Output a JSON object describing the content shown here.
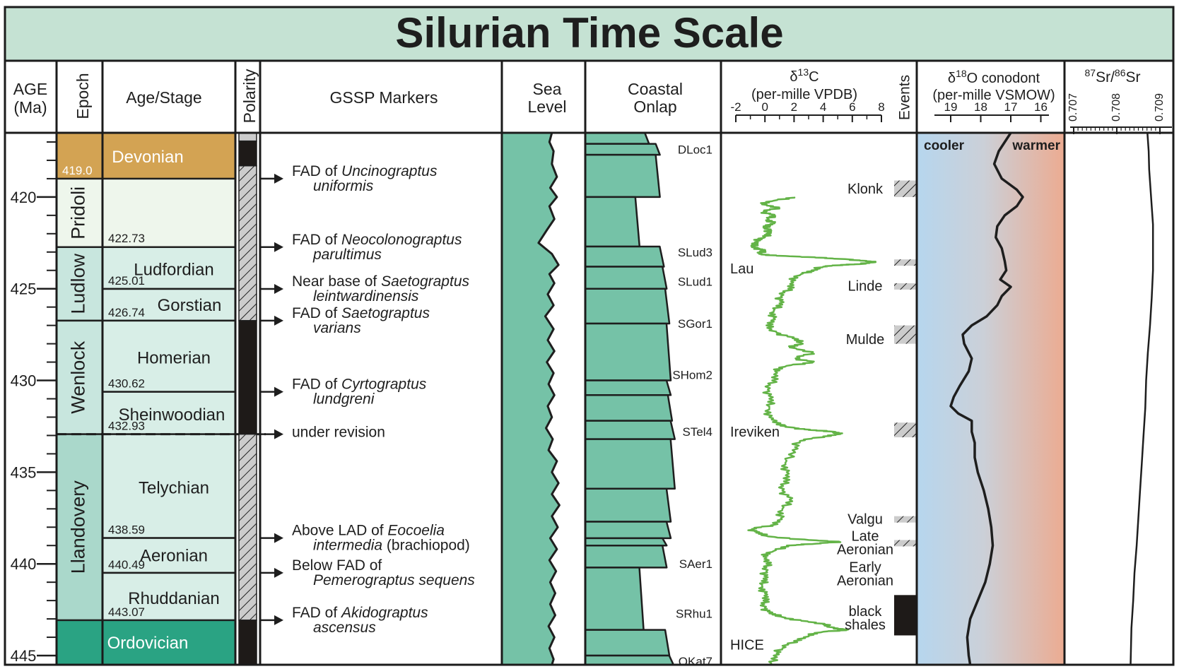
{
  "title": "Silurian Time Scale",
  "headers": {
    "age": [
      "AGE",
      "(Ma)"
    ],
    "epoch": "Epoch",
    "stage": "Age/Stage",
    "polarity": "Polarity",
    "gssp": "GSSP Markers",
    "sea_level": [
      "Sea",
      "Level"
    ],
    "onlap": [
      "Coastal",
      "Onlap"
    ],
    "d13c": [
      "δ13C",
      "(per-mille VPDB)"
    ],
    "events": "Events",
    "d18o": [
      "δ18O conodont",
      "(per-mille VSMOW)"
    ],
    "sr": "87Sr/86Sr"
  },
  "age_axis": {
    "min": 416.5,
    "max": 445.5,
    "labels": [
      420,
      425,
      430,
      435,
      440,
      445
    ]
  },
  "periods": [
    {
      "name": "Devonian",
      "base_label": "419.0",
      "color": "#d3a353"
    },
    {
      "name": "Ordovician",
      "color": "#2aa383"
    }
  ],
  "epochs": [
    {
      "name": "Pridoli",
      "top": 419.0,
      "base": 422.73,
      "color": "#eef6ec"
    },
    {
      "name": "Ludlow",
      "top": 422.73,
      "base": 426.74,
      "color": "#c8e6de"
    },
    {
      "name": "Wenlock",
      "top": 426.74,
      "base": 432.93,
      "color": "#c8e6de"
    },
    {
      "name": "Llandovery",
      "top": 432.93,
      "base": 443.07,
      "color": "#aad8cb"
    }
  ],
  "stages": [
    {
      "name": "Ludfordian",
      "top": 422.73,
      "base": 425.01,
      "label": "425.01"
    },
    {
      "name": "Gorstian",
      "top": 425.01,
      "base": 426.74,
      "label": "426.74"
    },
    {
      "name": "Homerian",
      "top": 426.74,
      "base": 430.62,
      "label": "430.62"
    },
    {
      "name": "Sheinwoodian",
      "top": 430.62,
      "base": 432.93,
      "label": "432.93"
    },
    {
      "name": "Telychian",
      "top": 432.93,
      "base": 438.59,
      "label": "438.59"
    },
    {
      "name": "Aeronian",
      "top": 438.59,
      "base": 440.49,
      "label": "440.49"
    },
    {
      "name": "Rhuddanian",
      "top": 440.49,
      "base": 443.07,
      "label": "443.07"
    }
  ],
  "pridoli_base_label": "422.73",
  "polarity": [
    {
      "top": 416.5,
      "base": 416.95,
      "type": "gray"
    },
    {
      "top": 416.95,
      "base": 418.3,
      "type": "black"
    },
    {
      "top": 418.3,
      "base": 426.74,
      "type": "hatch"
    },
    {
      "top": 426.74,
      "base": 432.93,
      "type": "black"
    },
    {
      "top": 432.93,
      "base": 443.07,
      "type": "hatch"
    },
    {
      "top": 443.07,
      "base": 445.5,
      "type": "black"
    }
  ],
  "gssp": [
    {
      "age": 419.0,
      "lines": [
        [
          {
            "t": "FAD of "
          },
          {
            "t": "Uncinograptus",
            "i": true
          }
        ],
        [
          {
            "t": "uniformis",
            "i": true
          }
        ]
      ]
    },
    {
      "age": 422.73,
      "lines": [
        [
          {
            "t": "FAD of "
          },
          {
            "t": "Neocolonograptus",
            "i": true
          }
        ],
        [
          {
            "t": "parultimus",
            "i": true
          }
        ]
      ]
    },
    {
      "age": 425.01,
      "lines": [
        [
          {
            "t": "Near base of "
          },
          {
            "t": "Saetograptus",
            "i": true
          }
        ],
        [
          {
            "t": "leintwardinensis",
            "i": true
          }
        ]
      ]
    },
    {
      "age": 426.74,
      "lines": [
        [
          {
            "t": "FAD of "
          },
          {
            "t": "Saetograptus",
            "i": true
          }
        ],
        [
          {
            "t": "varians",
            "i": true
          }
        ]
      ]
    },
    {
      "age": 430.62,
      "lines": [
        [
          {
            "t": "FAD of "
          },
          {
            "t": "Cyrtograptus",
            "i": true
          }
        ],
        [
          {
            "t": "lundgreni",
            "i": true
          }
        ]
      ]
    },
    {
      "age": 432.93,
      "lines": [
        [
          {
            "t": "under revision"
          }
        ]
      ]
    },
    {
      "age": 438.59,
      "lines": [
        [
          {
            "t": "Above LAD of "
          },
          {
            "t": "Eocoelia",
            "i": true
          }
        ],
        [
          {
            "t": "intermedia",
            "i": true
          },
          {
            "t": " (brachiopod)"
          }
        ]
      ]
    },
    {
      "age": 440.49,
      "lines": [
        [
          {
            "t": "Below FAD of"
          }
        ],
        [
          {
            "t": "Pemerograptus sequens",
            "i": true
          }
        ]
      ]
    },
    {
      "age": 443.07,
      "lines": [
        [
          {
            "t": "FAD of "
          },
          {
            "t": "Akidograptus",
            "i": true
          }
        ],
        [
          {
            "t": "ascensus",
            "i": true
          }
        ]
      ]
    }
  ],
  "sea_level_curve": [
    [
      416.5,
      0.6
    ],
    [
      417.0,
      0.57
    ],
    [
      417.5,
      0.62
    ],
    [
      418.2,
      0.6
    ],
    [
      418.9,
      0.66
    ],
    [
      419.5,
      0.58
    ],
    [
      420.0,
      0.66
    ],
    [
      420.5,
      0.57
    ],
    [
      421.2,
      0.63
    ],
    [
      421.8,
      0.54
    ],
    [
      422.5,
      0.44
    ],
    [
      423.1,
      0.6
    ],
    [
      423.7,
      0.68
    ],
    [
      424.2,
      0.57
    ],
    [
      424.7,
      0.63
    ],
    [
      425.3,
      0.55
    ],
    [
      425.9,
      0.62
    ],
    [
      426.5,
      0.52
    ],
    [
      427.2,
      0.62
    ],
    [
      427.8,
      0.55
    ],
    [
      428.4,
      0.63
    ],
    [
      429.0,
      0.54
    ],
    [
      429.6,
      0.62
    ],
    [
      430.2,
      0.56
    ],
    [
      430.8,
      0.63
    ],
    [
      431.4,
      0.55
    ],
    [
      432.0,
      0.6
    ],
    [
      432.6,
      0.53
    ],
    [
      433.2,
      0.61
    ],
    [
      433.8,
      0.56
    ],
    [
      434.4,
      0.66
    ],
    [
      435.0,
      0.6
    ],
    [
      435.6,
      0.68
    ],
    [
      436.2,
      0.6
    ],
    [
      436.8,
      0.69
    ],
    [
      437.4,
      0.6
    ],
    [
      438.0,
      0.67
    ],
    [
      438.6,
      0.58
    ],
    [
      439.2,
      0.66
    ],
    [
      439.8,
      0.57
    ],
    [
      440.4,
      0.65
    ],
    [
      441.0,
      0.58
    ],
    [
      441.6,
      0.64
    ],
    [
      442.2,
      0.58
    ],
    [
      442.8,
      0.64
    ],
    [
      443.4,
      0.56
    ],
    [
      444.0,
      0.63
    ],
    [
      444.6,
      0.57
    ],
    [
      445.2,
      0.62
    ],
    [
      445.5,
      0.6
    ]
  ],
  "onlap_sequences": [
    {
      "top": 416.5,
      "base": 417.1,
      "right": 0.47
    },
    {
      "top": 417.1,
      "base": 417.7,
      "right": 0.55
    },
    {
      "top": 417.7,
      "base": 420.0,
      "right": 0.55
    },
    {
      "top": 420.0,
      "base": 422.7,
      "right": 0.4
    },
    {
      "top": 422.7,
      "base": 423.8,
      "right": 0.58
    },
    {
      "top": 423.8,
      "base": 425.0,
      "right": 0.6
    },
    {
      "top": 425.0,
      "base": 426.9,
      "right": 0.62
    },
    {
      "top": 426.9,
      "base": 430.0,
      "right": 0.63
    },
    {
      "top": 430.0,
      "base": 430.8,
      "right": 0.63
    },
    {
      "top": 430.8,
      "base": 432.2,
      "right": 0.64
    },
    {
      "top": 432.2,
      "base": 433.2,
      "right": 0.66
    },
    {
      "top": 433.2,
      "base": 435.9,
      "right": 0.66
    },
    {
      "top": 435.9,
      "base": 437.7,
      "right": 0.63
    },
    {
      "top": 437.7,
      "base": 438.6,
      "right": 0.63
    },
    {
      "top": 438.6,
      "base": 439.0,
      "right": 0.6
    },
    {
      "top": 439.0,
      "base": 440.2,
      "right": 0.6
    },
    {
      "top": 440.2,
      "base": 443.6,
      "right": 0.43
    },
    {
      "top": 443.6,
      "base": 445.0,
      "right": 0.62
    },
    {
      "top": 445.0,
      "base": 445.5,
      "right": 0.65
    }
  ],
  "onlap_labels": [
    {
      "text": "DLoc1",
      "age": 417.4
    },
    {
      "text": "SLud3",
      "age": 423.0
    },
    {
      "text": "SLud1",
      "age": 424.6
    },
    {
      "text": "SGor1",
      "age": 426.9
    },
    {
      "text": "SHom2",
      "age": 429.7
    },
    {
      "text": "STel4",
      "age": 432.8
    },
    {
      "text": "SAer1",
      "age": 440.0
    },
    {
      "text": "SRhu1",
      "age": 442.7
    },
    {
      "text": "OKat7",
      "age": 445.3
    }
  ],
  "d13c": {
    "ticks": [
      -2,
      0,
      2,
      4,
      6,
      8
    ],
    "curve": [
      [
        420.0,
        2.0
      ],
      [
        420.2,
        0.6
      ],
      [
        420.4,
        -0.2
      ],
      [
        420.6,
        0.8
      ],
      [
        420.8,
        -0.1
      ],
      [
        421.0,
        0.5
      ],
      [
        421.2,
        0.2
      ],
      [
        421.4,
        0.6
      ],
      [
        421.6,
        -0.1
      ],
      [
        421.8,
        0.4
      ],
      [
        422.0,
        0.1
      ],
      [
        422.2,
        0.0
      ],
      [
        422.4,
        -0.6
      ],
      [
        422.6,
        -0.9
      ],
      [
        422.8,
        -0.5
      ],
      [
        422.9,
        -0.2
      ],
      [
        423.1,
        -0.4
      ],
      [
        423.2,
        0.8
      ],
      [
        423.3,
        3.5
      ],
      [
        423.4,
        5.8
      ],
      [
        423.5,
        6.9
      ],
      [
        423.55,
        7.6
      ],
      [
        423.65,
        6.6
      ],
      [
        423.7,
        5.2
      ],
      [
        423.8,
        4.0
      ],
      [
        424.0,
        3.2
      ],
      [
        424.2,
        2.5
      ],
      [
        424.6,
        1.8
      ],
      [
        425.0,
        1.6
      ],
      [
        425.4,
        1.1
      ],
      [
        425.8,
        1.0
      ],
      [
        426.2,
        0.6
      ],
      [
        426.6,
        0.6
      ],
      [
        427.0,
        0.1
      ],
      [
        427.4,
        0.8
      ],
      [
        427.7,
        1.9
      ],
      [
        428.0,
        2.6
      ],
      [
        428.2,
        1.7
      ],
      [
        428.5,
        3.2
      ],
      [
        428.8,
        2.1
      ],
      [
        429.0,
        3.3
      ],
      [
        429.2,
        1.5
      ],
      [
        429.5,
        0.7
      ],
      [
        430.0,
        0.5
      ],
      [
        430.5,
        0.2
      ],
      [
        431.0,
        0.3
      ],
      [
        431.5,
        0.3
      ],
      [
        432.0,
        0.3
      ],
      [
        432.4,
        0.8
      ],
      [
        432.6,
        2.1
      ],
      [
        432.7,
        3.0
      ],
      [
        432.8,
        4.8
      ],
      [
        432.9,
        5.2
      ],
      [
        433.05,
        4.0
      ],
      [
        433.3,
        2.4
      ],
      [
        433.8,
        1.9
      ],
      [
        434.5,
        1.4
      ],
      [
        435.0,
        1.5
      ],
      [
        435.5,
        1.3
      ],
      [
        436.0,
        1.2
      ],
      [
        436.5,
        1.7
      ],
      [
        437.0,
        1.2
      ],
      [
        437.5,
        1.1
      ],
      [
        437.9,
        0.4
      ],
      [
        438.1,
        -0.9
      ],
      [
        438.3,
        -0.6
      ],
      [
        438.5,
        0.2
      ],
      [
        438.7,
        3.0
      ],
      [
        438.8,
        5.1
      ],
      [
        438.9,
        3.5
      ],
      [
        439.0,
        1.5
      ],
      [
        439.3,
        0.6
      ],
      [
        439.6,
        -0.1
      ],
      [
        440.0,
        0.1
      ],
      [
        440.4,
        0.1
      ],
      [
        440.8,
        -0.1
      ],
      [
        441.2,
        -0.2
      ],
      [
        441.6,
        0.0
      ],
      [
        442.0,
        -0.1
      ],
      [
        442.4,
        0.0
      ],
      [
        442.7,
        0.3
      ],
      [
        442.9,
        1.2
      ],
      [
        443.1,
        2.5
      ],
      [
        443.3,
        4.0
      ],
      [
        443.5,
        4.8
      ],
      [
        443.6,
        5.6
      ],
      [
        443.7,
        4.0
      ],
      [
        443.9,
        3.0
      ],
      [
        444.2,
        2.0
      ],
      [
        444.6,
        1.2
      ],
      [
        445.0,
        0.6
      ],
      [
        445.5,
        0.4
      ]
    ]
  },
  "d13c_labels": [
    {
      "text": "Lau",
      "age": 423.9
    },
    {
      "text": "Ireviken",
      "age": 432.8
    },
    {
      "text": "HICE",
      "age": 444.4
    }
  ],
  "events": [
    {
      "name": [
        "Klonk"
      ],
      "top": 419.1,
      "base": 420.0,
      "type": "hatch",
      "label_age": 419.5
    },
    {
      "name": [
        "Linde"
      ],
      "top": 424.7,
      "base": 424.9,
      "type": "hatch",
      "label_age": 424.8
    },
    {
      "name": [
        "Mulde"
      ],
      "top": 427.0,
      "base": 428.0,
      "type": "hatch",
      "label_age": 427.7
    },
    {
      "name": [
        "Valgu"
      ],
      "top": 437.4,
      "base": 437.6,
      "type": "hatch",
      "label_age": 437.5
    },
    {
      "name": [
        "Late",
        "Aeronian"
      ],
      "top": 438.7,
      "base": 438.85,
      "type": "hatch",
      "label_age": 438.8
    },
    {
      "name": [
        "Early",
        "Aeronian"
      ],
      "top": 440.5,
      "base": 440.5,
      "type": "none",
      "label_age": 440.5
    },
    {
      "name": [
        "black",
        "shales"
      ],
      "top": 441.7,
      "base": 443.9,
      "type": "black",
      "label_age": 442.9
    },
    {
      "name": [],
      "top": 423.4,
      "base": 423.6,
      "type": "hatch",
      "label_age": 423.5
    },
    {
      "name": [],
      "top": 432.3,
      "base": 433.1,
      "type": "hatch",
      "label_age": 432.7
    }
  ],
  "d18o": {
    "ticks": [
      19,
      18,
      17,
      16
    ],
    "cool_label": "cooler",
    "warm_label": "warmer",
    "cool_color": "#b6d6ee",
    "warm_color": "#ecab91",
    "curve": [
      [
        416.5,
        17.0
      ],
      [
        417.5,
        17.4
      ],
      [
        418.2,
        17.55
      ],
      [
        419.0,
        17.3
      ],
      [
        419.6,
        16.8
      ],
      [
        420.0,
        16.6
      ],
      [
        420.5,
        16.8
      ],
      [
        421.0,
        17.2
      ],
      [
        421.6,
        17.45
      ],
      [
        422.2,
        17.5
      ],
      [
        422.8,
        17.3
      ],
      [
        423.5,
        17.2
      ],
      [
        424.0,
        17.15
      ],
      [
        424.5,
        17.35
      ],
      [
        424.9,
        17.0
      ],
      [
        425.4,
        17.3
      ],
      [
        425.9,
        17.45
      ],
      [
        426.5,
        17.8
      ],
      [
        427.0,
        18.3
      ],
      [
        427.5,
        18.6
      ],
      [
        428.0,
        18.55
      ],
      [
        428.8,
        18.3
      ],
      [
        429.5,
        18.4
      ],
      [
        430.3,
        18.7
      ],
      [
        430.9,
        18.9
      ],
      [
        431.4,
        19.0
      ],
      [
        431.8,
        18.75
      ],
      [
        432.2,
        18.3
      ],
      [
        432.8,
        18.3
      ],
      [
        433.4,
        18.2
      ],
      [
        434.2,
        18.2
      ],
      [
        435.0,
        18.1
      ],
      [
        436.0,
        17.9
      ],
      [
        437.0,
        17.75
      ],
      [
        438.0,
        17.65
      ],
      [
        439.0,
        17.6
      ],
      [
        440.0,
        17.7
      ],
      [
        441.0,
        17.85
      ],
      [
        442.0,
        18.1
      ],
      [
        443.0,
        18.35
      ],
      [
        444.0,
        18.45
      ],
      [
        445.0,
        18.4
      ],
      [
        445.5,
        18.35
      ]
    ]
  },
  "sr": {
    "ticks": [
      "0.707",
      "0.708",
      "0.709"
    ],
    "curve": [
      [
        416.5,
        0.70871
      ],
      [
        417.5,
        0.70874
      ],
      [
        418.5,
        0.70875
      ],
      [
        419.5,
        0.70878
      ],
      [
        420.5,
        0.70881
      ],
      [
        421.5,
        0.70884
      ],
      [
        422.5,
        0.70884
      ],
      [
        424.0,
        0.70884
      ],
      [
        425.5,
        0.70881
      ],
      [
        427.0,
        0.70877
      ],
      [
        428.5,
        0.70872
      ],
      [
        430.0,
        0.70868
      ],
      [
        431.5,
        0.70866
      ],
      [
        433.0,
        0.70862
      ],
      [
        434.5,
        0.70858
      ],
      [
        436.0,
        0.70854
      ],
      [
        437.5,
        0.7085
      ],
      [
        439.0,
        0.70846
      ],
      [
        440.5,
        0.70841
      ],
      [
        442.0,
        0.70838
      ],
      [
        443.5,
        0.70834
      ],
      [
        444.5,
        0.70833
      ],
      [
        445.5,
        0.70832
      ]
    ]
  },
  "colors": {
    "title_bg": "#c5e2d3",
    "stage_fill": "#d8eee7",
    "pridoli_stage": "#eef6ec",
    "sea_fill": "#75c2a7",
    "onlap_fill": "#75c2a7",
    "d13c_line": "#63b347",
    "hatch_gray": "#cccccc"
  }
}
